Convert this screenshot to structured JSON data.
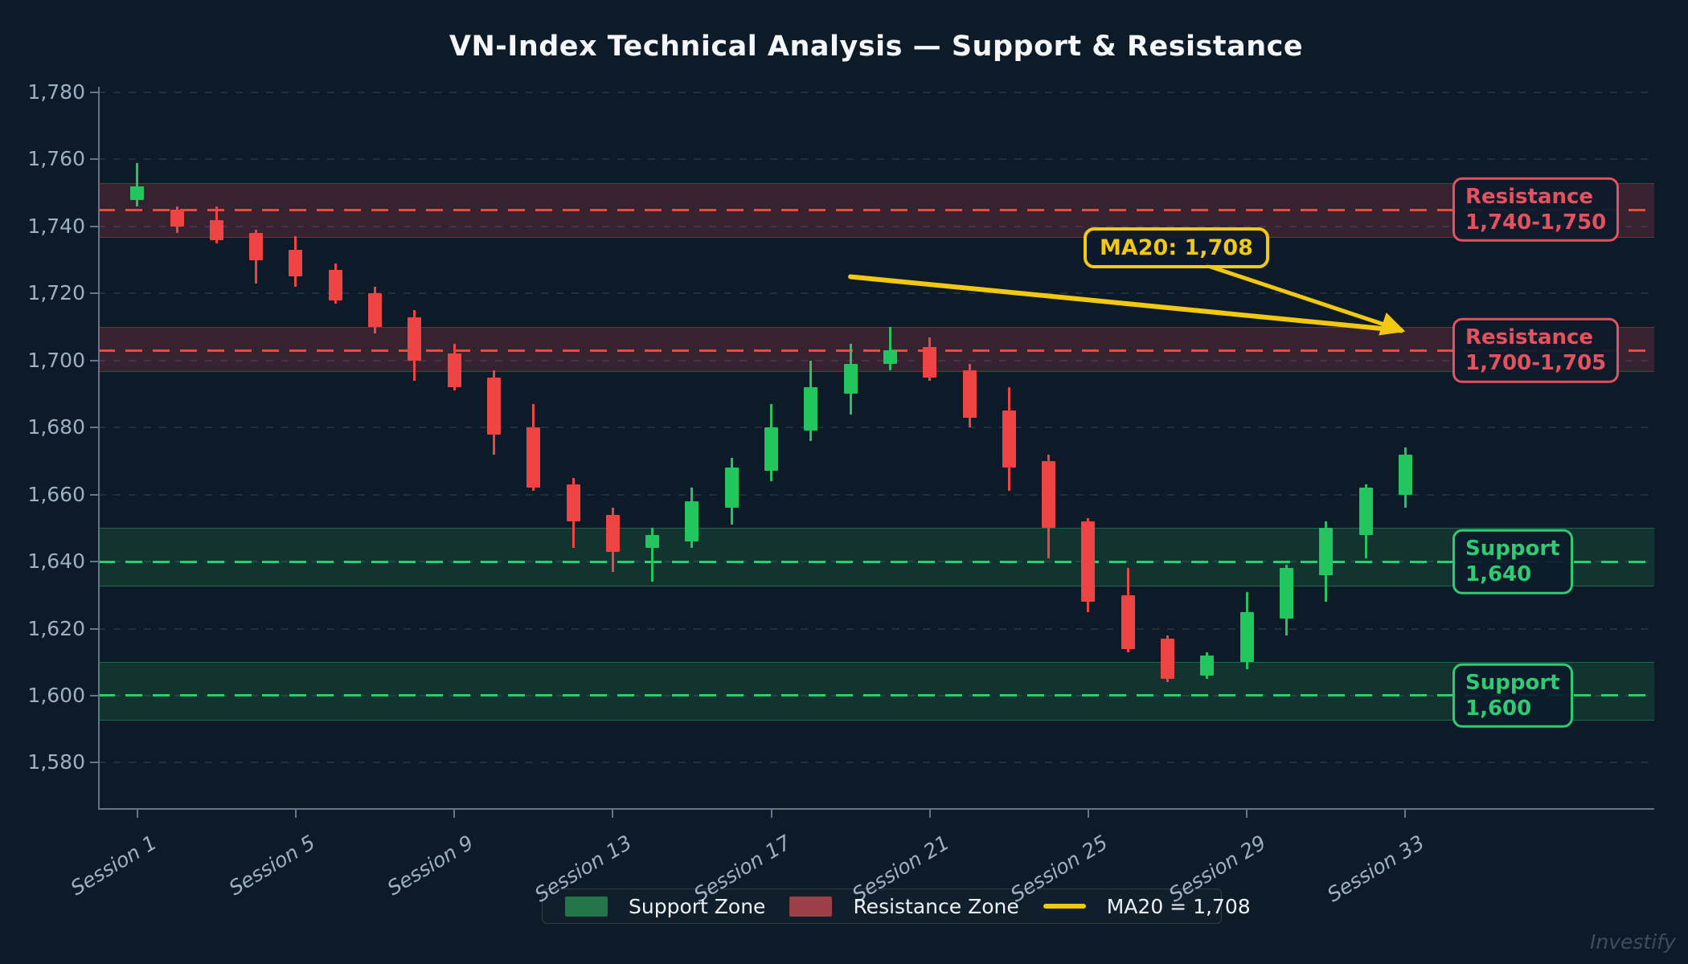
{
  "title": "VN-Index Technical Analysis — Support & Resistance",
  "watermark": "Investify",
  "colors": {
    "background": "#0d1a28",
    "title_text": "#f5f7fa",
    "axis_text": "#9eb0c4",
    "spine": "#66758c",
    "grid": "#aac4e6",
    "candle_up": "#22c55e",
    "candle_down": "#ef4444",
    "support_accent": "#2ecc71",
    "resistance_accent": "#e4525f",
    "resistance_dash": "#e74c3c",
    "ma_yellow": "#f2c811",
    "legend_support_swatch": "#217549",
    "legend_resistance_swatch": "#9b4046"
  },
  "chart_data": {
    "type": "candlestick",
    "title": "VN-Index Technical Analysis — Support & Resistance",
    "xlabel": "",
    "ylabel": "",
    "grid": true,
    "legend_position": "bottom",
    "ylim": [
      1580,
      1780
    ],
    "y_axis": {
      "min": 1580,
      "max": 1780,
      "step": 20,
      "tick_values": [
        1580,
        1600,
        1620,
        1640,
        1660,
        1680,
        1700,
        1720,
        1740,
        1760,
        1780
      ],
      "tick_labels": [
        "1,580",
        "1,600",
        "1,620",
        "1,640",
        "1,660",
        "1,680",
        "1,700",
        "1,720",
        "1,740",
        "1,760",
        "1,780"
      ]
    },
    "x_axis": {
      "session_count": 33,
      "tick_sessions": [
        1,
        5,
        9,
        13,
        17,
        21,
        25,
        29,
        33
      ],
      "tick_labels": [
        "Session 1",
        "Session 5",
        "Session 9",
        "Session 13",
        "Session 17",
        "Session 21",
        "Session 25",
        "Session 29",
        "Session 33"
      ]
    },
    "candles": [
      {
        "session": 1,
        "open": 1748,
        "high": 1759,
        "low": 1746,
        "close": 1752
      },
      {
        "session": 2,
        "open": 1745,
        "high": 1746,
        "low": 1738,
        "close": 1740
      },
      {
        "session": 3,
        "open": 1742,
        "high": 1746,
        "low": 1735,
        "close": 1736
      },
      {
        "session": 4,
        "open": 1738,
        "high": 1739,
        "low": 1723,
        "close": 1730
      },
      {
        "session": 5,
        "open": 1733,
        "high": 1737,
        "low": 1722,
        "close": 1725
      },
      {
        "session": 6,
        "open": 1727,
        "high": 1729,
        "low": 1717,
        "close": 1718
      },
      {
        "session": 7,
        "open": 1720,
        "high": 1722,
        "low": 1708,
        "close": 1710
      },
      {
        "session": 8,
        "open": 1713,
        "high": 1715,
        "low": 1694,
        "close": 1700
      },
      {
        "session": 9,
        "open": 1702,
        "high": 1705,
        "low": 1691,
        "close": 1692
      },
      {
        "session": 10,
        "open": 1695,
        "high": 1697,
        "low": 1672,
        "close": 1678
      },
      {
        "session": 11,
        "open": 1680,
        "high": 1687,
        "low": 1661,
        "close": 1662
      },
      {
        "session": 12,
        "open": 1663,
        "high": 1665,
        "low": 1644,
        "close": 1652
      },
      {
        "session": 13,
        "open": 1654,
        "high": 1656,
        "low": 1637,
        "close": 1643
      },
      {
        "session": 14,
        "open": 1644,
        "high": 1650,
        "low": 1634,
        "close": 1648
      },
      {
        "session": 15,
        "open": 1646,
        "high": 1662,
        "low": 1644,
        "close": 1658
      },
      {
        "session": 16,
        "open": 1656,
        "high": 1671,
        "low": 1651,
        "close": 1668
      },
      {
        "session": 17,
        "open": 1667,
        "high": 1687,
        "low": 1664,
        "close": 1680
      },
      {
        "session": 18,
        "open": 1679,
        "high": 1700,
        "low": 1676,
        "close": 1692
      },
      {
        "session": 19,
        "open": 1690,
        "high": 1705,
        "low": 1684,
        "close": 1699
      },
      {
        "session": 20,
        "open": 1699,
        "high": 1710,
        "low": 1697,
        "close": 1703
      },
      {
        "session": 21,
        "open": 1704,
        "high": 1707,
        "low": 1694,
        "close": 1695
      },
      {
        "session": 22,
        "open": 1697,
        "high": 1699,
        "low": 1680,
        "close": 1683
      },
      {
        "session": 23,
        "open": 1685,
        "high": 1692,
        "low": 1661,
        "close": 1668
      },
      {
        "session": 24,
        "open": 1670,
        "high": 1672,
        "low": 1641,
        "close": 1650
      },
      {
        "session": 25,
        "open": 1652,
        "high": 1653,
        "low": 1625,
        "close": 1628
      },
      {
        "session": 26,
        "open": 1630,
        "high": 1638,
        "low": 1613,
        "close": 1614
      },
      {
        "session": 27,
        "open": 1617,
        "high": 1618,
        "low": 1604,
        "close": 1605
      },
      {
        "session": 28,
        "open": 1606,
        "high": 1613,
        "low": 1605,
        "close": 1612
      },
      {
        "session": 29,
        "open": 1610,
        "high": 1631,
        "low": 1608,
        "close": 1625
      },
      {
        "session": 30,
        "open": 1623,
        "high": 1639,
        "low": 1618,
        "close": 1638
      },
      {
        "session": 31,
        "open": 1636,
        "high": 1652,
        "low": 1628,
        "close": 1650
      },
      {
        "session": 32,
        "open": 1648,
        "high": 1663,
        "low": 1641,
        "close": 1662
      },
      {
        "session": 33,
        "open": 1660,
        "high": 1674,
        "low": 1656,
        "close": 1672
      }
    ],
    "zones": [
      {
        "kind": "resistance",
        "range": [
          1737,
          1753
        ],
        "line": 1745,
        "label_lines": [
          "Resistance",
          "1,740-1,750"
        ]
      },
      {
        "kind": "resistance",
        "range": [
          1697,
          1710
        ],
        "line": 1703,
        "label_lines": [
          "Resistance",
          "1,700-1,705"
        ]
      },
      {
        "kind": "support",
        "range": [
          1633,
          1650
        ],
        "line": 1640,
        "label_lines": [
          "Support",
          "1,640"
        ]
      },
      {
        "kind": "support",
        "range": [
          1593,
          1610
        ],
        "line": 1600,
        "label_lines": [
          "Support",
          "1,600"
        ]
      }
    ],
    "ma20": {
      "value": 1708,
      "annotation_label": "MA20: 1,708",
      "line": {
        "from": {
          "session": 19,
          "value": 1725
        },
        "to": {
          "session": 33.1,
          "value": 1708
        }
      }
    },
    "legend": {
      "items": [
        {
          "label": "Support Zone",
          "type": "patch"
        },
        {
          "label": "Resistance Zone",
          "type": "patch"
        },
        {
          "label": "MA20 = 1,708",
          "type": "line"
        }
      ]
    }
  }
}
